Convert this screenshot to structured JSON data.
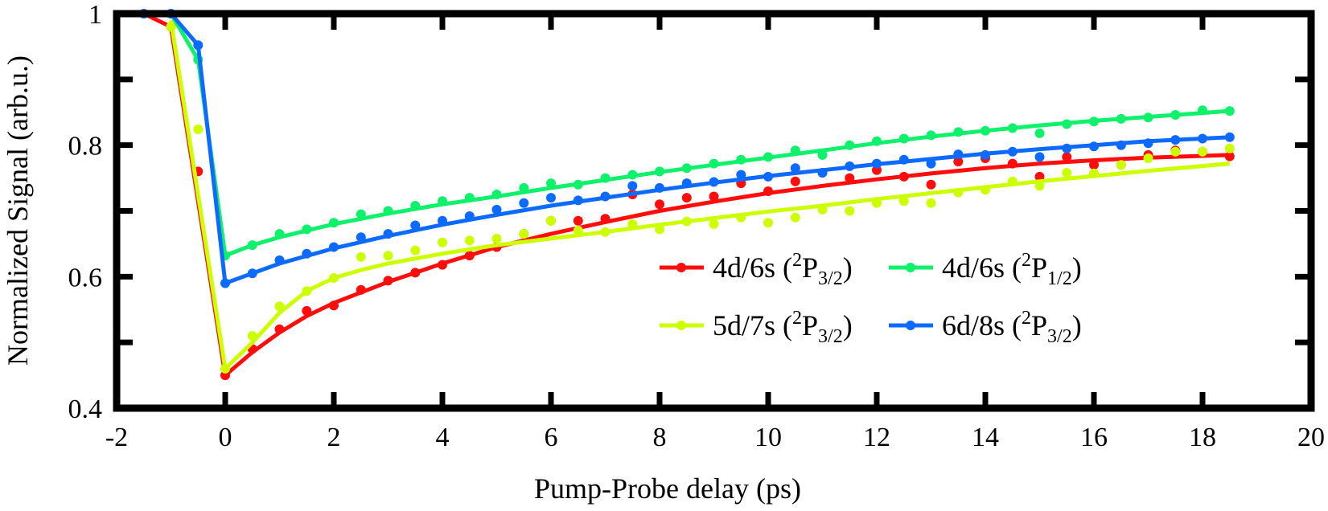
{
  "chart_data": {
    "type": "line",
    "title": "",
    "xlabel": "Pump-Probe delay (ps)",
    "ylabel": "Normalized Signal (arb.u.)",
    "xlim": [
      -2,
      20
    ],
    "ylim": [
      0.4,
      1.0
    ],
    "xticks": [
      -2,
      0,
      2,
      4,
      6,
      8,
      10,
      12,
      14,
      16,
      18,
      20
    ],
    "yticks": [
      0.4,
      0.6,
      0.8,
      1.0
    ],
    "ytick_labels": [
      "0.4",
      "0.6",
      "0.8",
      "1"
    ],
    "grid": false,
    "legend_position": "lower right, 2 columns",
    "series": [
      {
        "name": "4d/6s (2P3/2)",
        "label_main": "4d/6s (",
        "label_sup": "2",
        "label_p": "P",
        "label_sub": "3/2",
        "label_end": ")",
        "color": "#ff0d0d",
        "x": [
          -1.5,
          -1.0,
          -0.5,
          0,
          0.5,
          1,
          1.5,
          2,
          2.5,
          3,
          3.5,
          4,
          4.5,
          5,
          5.5,
          6,
          6.5,
          7,
          7.5,
          8,
          8.5,
          9,
          9.5,
          10,
          10.5,
          11,
          11.5,
          12,
          12.5,
          13,
          13.5,
          14,
          14.5,
          15,
          15.5,
          16,
          16.5,
          17,
          17.5,
          18,
          18.5
        ],
        "values": [
          1.0,
          0.98,
          0.76,
          0.45,
          0.49,
          0.52,
          0.548,
          0.556,
          0.58,
          0.594,
          0.606,
          0.618,
          0.632,
          0.645,
          0.665,
          0.685,
          0.685,
          0.688,
          0.725,
          0.71,
          0.72,
          0.722,
          0.742,
          0.73,
          0.745,
          0.758,
          0.75,
          0.762,
          0.752,
          0.74,
          0.775,
          0.78,
          0.772,
          0.752,
          0.782,
          0.77,
          0.77,
          0.785,
          0.792,
          0.79,
          0.783
        ],
        "fit": [
          [
            -1.5,
            1.0
          ],
          [
            -1.0,
            0.98
          ],
          [
            0,
            0.45
          ],
          [
            0.5,
            0.485
          ],
          [
            1,
            0.515
          ],
          [
            1.5,
            0.54
          ],
          [
            2,
            0.56
          ],
          [
            3,
            0.592
          ],
          [
            4,
            0.62
          ],
          [
            5,
            0.645
          ],
          [
            6,
            0.665
          ],
          [
            7,
            0.683
          ],
          [
            8,
            0.7
          ],
          [
            9,
            0.714
          ],
          [
            10,
            0.727
          ],
          [
            11,
            0.738
          ],
          [
            12,
            0.748
          ],
          [
            13,
            0.757
          ],
          [
            14,
            0.765
          ],
          [
            15,
            0.772
          ],
          [
            16,
            0.777
          ],
          [
            17,
            0.781
          ],
          [
            18.5,
            0.785
          ]
        ]
      },
      {
        "name": "5d/7s (2P3/2)",
        "label_main": "5d/7s (",
        "label_sup": "2",
        "label_p": "P",
        "label_sub": "3/2",
        "label_end": ")",
        "color": "#ccff00",
        "x": [
          -1.0,
          -0.5,
          0,
          0.5,
          1,
          1.5,
          2,
          2.5,
          3,
          3.5,
          4,
          4.5,
          5,
          5.5,
          6,
          6.5,
          7,
          7.5,
          8,
          8.5,
          9,
          9.5,
          10,
          10.5,
          11,
          11.5,
          12,
          12.5,
          13,
          13.5,
          14,
          14.5,
          15,
          15.5,
          16,
          16.5,
          17,
          17.5,
          18,
          18.5
        ],
        "values": [
          0.98,
          0.824,
          0.46,
          0.51,
          0.555,
          0.578,
          0.598,
          0.63,
          0.632,
          0.64,
          0.652,
          0.655,
          0.658,
          0.665,
          0.685,
          0.67,
          0.668,
          0.68,
          0.672,
          0.684,
          0.68,
          0.69,
          0.682,
          0.69,
          0.702,
          0.7,
          0.712,
          0.715,
          0.712,
          0.728,
          0.732,
          0.745,
          0.738,
          0.758,
          0.757,
          0.77,
          0.78,
          0.79,
          0.79,
          0.795
        ],
        "fit": [
          [
            -1.0,
            0.99
          ],
          [
            0,
            0.46
          ],
          [
            0.5,
            0.5
          ],
          [
            1,
            0.545
          ],
          [
            1.5,
            0.578
          ],
          [
            2,
            0.598
          ],
          [
            2.5,
            0.61
          ],
          [
            3,
            0.62
          ],
          [
            4,
            0.635
          ],
          [
            5,
            0.648
          ],
          [
            6,
            0.658
          ],
          [
            7,
            0.668
          ],
          [
            8,
            0.679
          ],
          [
            9,
            0.689
          ],
          [
            10,
            0.699
          ],
          [
            11,
            0.708
          ],
          [
            12,
            0.718
          ],
          [
            13,
            0.727
          ],
          [
            14,
            0.736
          ],
          [
            15,
            0.745
          ],
          [
            16,
            0.753
          ],
          [
            17,
            0.761
          ],
          [
            18.5,
            0.772
          ]
        ]
      },
      {
        "name": "4d/6s (2P1/2)",
        "label_main": "4d/6s (",
        "label_sup": "2",
        "label_p": "P",
        "label_sub": "1/2",
        "label_end": ")",
        "color": "#0df26a",
        "x": [
          -1.5,
          -1.0,
          -0.5,
          0,
          0.5,
          1,
          1.5,
          2,
          2.5,
          3,
          3.5,
          4,
          4.5,
          5,
          5.5,
          6,
          6.5,
          7,
          7.5,
          8,
          8.5,
          9,
          9.5,
          10,
          10.5,
          11,
          11.5,
          12,
          12.5,
          13,
          13.5,
          14,
          14.5,
          15,
          15.5,
          16,
          16.5,
          17,
          17.5,
          18,
          18.5
        ],
        "values": [
          1.0,
          1.0,
          0.93,
          0.632,
          0.648,
          0.665,
          0.672,
          0.682,
          0.695,
          0.7,
          0.708,
          0.715,
          0.72,
          0.725,
          0.735,
          0.742,
          0.74,
          0.75,
          0.755,
          0.76,
          0.765,
          0.772,
          0.778,
          0.782,
          0.792,
          0.785,
          0.8,
          0.806,
          0.81,
          0.815,
          0.82,
          0.822,
          0.826,
          0.818,
          0.832,
          0.836,
          0.84,
          0.842,
          0.846,
          0.853,
          0.852
        ],
        "fit": [
          [
            -1.5,
            1.0
          ],
          [
            -1.0,
            1.0
          ],
          [
            -0.5,
            0.93
          ],
          [
            0,
            0.632
          ],
          [
            0.5,
            0.648
          ],
          [
            1,
            0.66
          ],
          [
            2,
            0.68
          ],
          [
            3,
            0.696
          ],
          [
            4,
            0.71
          ],
          [
            5,
            0.722
          ],
          [
            6,
            0.735
          ],
          [
            7,
            0.747
          ],
          [
            8,
            0.759
          ],
          [
            9,
            0.77
          ],
          [
            10,
            0.781
          ],
          [
            11,
            0.792
          ],
          [
            12,
            0.803
          ],
          [
            13,
            0.813
          ],
          [
            14,
            0.822
          ],
          [
            15,
            0.83
          ],
          [
            16,
            0.837
          ],
          [
            17,
            0.843
          ],
          [
            18.5,
            0.852
          ]
        ]
      },
      {
        "name": "6d/8s (2P3/2)",
        "label_main": "6d/8s (",
        "label_sup": "2",
        "label_p": "P",
        "label_sub": "3/2",
        "label_end": ")",
        "color": "#0d6aff",
        "x": [
          -1.5,
          -1.0,
          -0.5,
          0,
          0.5,
          1,
          1.5,
          2,
          2.5,
          3,
          3.5,
          4,
          4.5,
          5,
          5.5,
          6,
          6.5,
          7,
          7.5,
          8,
          8.5,
          9,
          9.5,
          10,
          10.5,
          11,
          11.5,
          12,
          12.5,
          13,
          13.5,
          14,
          14.5,
          15,
          15.5,
          16,
          16.5,
          17,
          17.5,
          18,
          18.5
        ],
        "values": [
          1.0,
          1.0,
          0.952,
          0.59,
          0.605,
          0.625,
          0.635,
          0.645,
          0.66,
          0.665,
          0.678,
          0.685,
          0.692,
          0.702,
          0.712,
          0.72,
          0.716,
          0.722,
          0.738,
          0.735,
          0.742,
          0.744,
          0.755,
          0.752,
          0.765,
          0.758,
          0.768,
          0.772,
          0.778,
          0.772,
          0.786,
          0.785,
          0.79,
          0.782,
          0.795,
          0.798,
          0.8,
          0.803,
          0.808,
          0.81,
          0.812
        ],
        "fit": [
          [
            -1.5,
            1.0
          ],
          [
            -1.0,
            1.0
          ],
          [
            -0.5,
            0.952
          ],
          [
            0,
            0.59
          ],
          [
            0.5,
            0.605
          ],
          [
            1,
            0.62
          ],
          [
            2,
            0.643
          ],
          [
            3,
            0.662
          ],
          [
            4,
            0.679
          ],
          [
            5,
            0.694
          ],
          [
            6,
            0.708
          ],
          [
            7,
            0.72
          ],
          [
            8,
            0.732
          ],
          [
            9,
            0.743
          ],
          [
            10,
            0.753
          ],
          [
            11,
            0.762
          ],
          [
            12,
            0.771
          ],
          [
            13,
            0.779
          ],
          [
            14,
            0.787
          ],
          [
            15,
            0.794
          ],
          [
            16,
            0.8
          ],
          [
            17,
            0.806
          ],
          [
            18.5,
            0.812
          ]
        ]
      }
    ]
  },
  "axes": {
    "xlabel": "Pump-Probe delay (ps)",
    "ylabel": "Normalized Signal (arb.u.)"
  },
  "legend": [
    {
      "main": "4d/6s (",
      "sup": "2",
      "p": "P",
      "sub": "3/2",
      "end": ")",
      "color": "#ff0d0d"
    },
    {
      "main": "4d/6s (",
      "sup": "2",
      "p": "P",
      "sub": "1/2",
      "end": ")",
      "color": "#0df26a"
    },
    {
      "main": "5d/7s (",
      "sup": "2",
      "p": "P",
      "sub": "3/2",
      "end": ")",
      "color": "#ccff00"
    },
    {
      "main": "6d/8s (",
      "sup": "2",
      "p": "P",
      "sub": "3/2",
      "end": ")",
      "color": "#0d6aff"
    }
  ]
}
